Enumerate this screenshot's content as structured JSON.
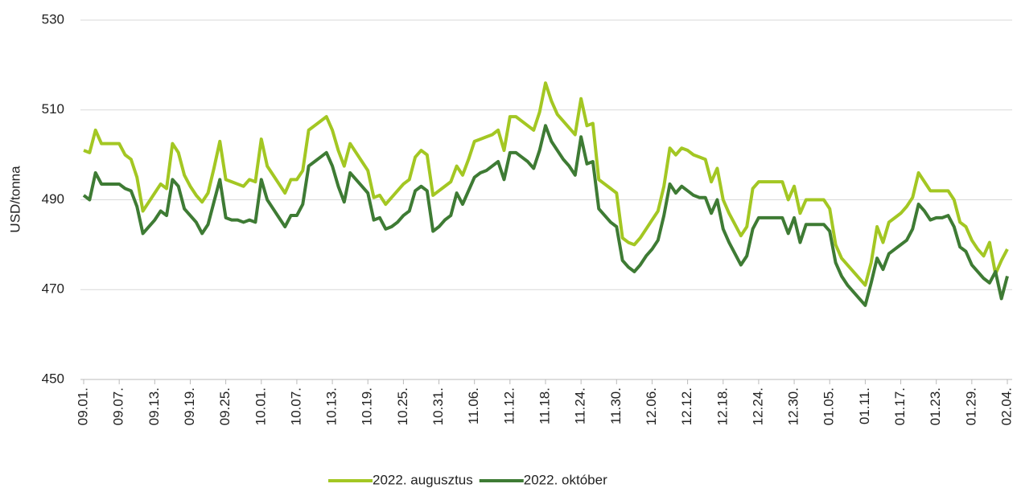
{
  "chart_data": {
    "type": "line",
    "y_label": "USD/tonna",
    "categories": [
      "09.01.",
      null,
      null,
      null,
      null,
      null,
      "09.07.",
      null,
      null,
      null,
      null,
      null,
      "09.13.",
      null,
      null,
      null,
      null,
      null,
      "09.19.",
      null,
      null,
      null,
      null,
      null,
      "09.25.",
      null,
      null,
      null,
      null,
      null,
      "10.01.",
      null,
      null,
      null,
      null,
      null,
      "10.07.",
      null,
      null,
      null,
      null,
      null,
      "10.13.",
      null,
      null,
      null,
      null,
      null,
      "10.19.",
      null,
      null,
      null,
      null,
      null,
      "10.25.",
      null,
      null,
      null,
      null,
      null,
      "10.31.",
      null,
      null,
      null,
      null,
      null,
      "11.06.",
      null,
      null,
      null,
      null,
      null,
      "11.12.",
      null,
      null,
      null,
      null,
      null,
      "11.18.",
      null,
      null,
      null,
      null,
      null,
      "11.24.",
      null,
      null,
      null,
      null,
      null,
      "11.30.",
      null,
      null,
      null,
      null,
      null,
      "12.06.",
      null,
      null,
      null,
      null,
      null,
      "12.12.",
      null,
      null,
      null,
      null,
      null,
      "12.18.",
      null,
      null,
      null,
      null,
      null,
      "12.24.",
      null,
      null,
      null,
      null,
      null,
      "12.30.",
      null,
      null,
      null,
      null,
      null,
      "01.05.",
      null,
      null,
      null,
      null,
      null,
      "01.11.",
      null,
      null,
      null,
      null,
      null,
      "01.17.",
      null,
      null,
      null,
      null,
      null,
      "01.23.",
      null,
      null,
      null,
      null,
      null,
      "01.29.",
      null,
      null,
      null,
      null,
      null,
      "02.04."
    ],
    "series": [
      {
        "name": "2022. augusztus",
        "color": "#a3c723",
        "values": [
          501,
          500.5,
          505.5,
          502.5,
          502.5,
          502.5,
          502.5,
          500,
          499,
          495,
          487.5,
          489.5,
          491.5,
          493.5,
          492.5,
          502.5,
          500.5,
          495.5,
          493,
          491,
          489.5,
          491.5,
          497,
          503,
          494.5,
          494,
          493.5,
          493,
          494.5,
          494,
          503.5,
          497.5,
          495.5,
          493.5,
          491.5,
          494.5,
          494.5,
          496.5,
          505.5,
          506.5,
          507.5,
          508.5,
          505.5,
          501,
          497.5,
          502.5,
          500.5,
          498.5,
          496.5,
          490.5,
          491,
          489,
          490.5,
          492,
          493.5,
          494.5,
          499.5,
          501,
          500,
          491,
          492,
          493,
          494,
          497.5,
          495.5,
          499,
          503,
          503.5,
          504,
          504.5,
          505.5,
          501,
          508.5,
          508.5,
          507.5,
          506.5,
          505.5,
          509.5,
          516,
          512,
          509,
          507.5,
          506,
          504.5,
          512.5,
          506.5,
          507,
          494.5,
          493.5,
          492.5,
          491.5,
          481.5,
          480.5,
          480,
          481.5,
          483.5,
          485.5,
          487.5,
          493,
          501.5,
          500,
          501.5,
          501,
          500,
          499.5,
          499,
          494,
          497,
          490,
          487,
          484.5,
          482,
          484,
          492.5,
          494,
          494,
          494,
          494,
          494,
          490,
          493,
          487,
          490,
          490,
          490,
          490,
          488,
          480,
          477,
          475.5,
          474,
          472.5,
          471,
          476,
          484,
          480.5,
          485,
          486,
          487,
          488.5,
          490.5,
          496,
          494,
          492,
          492,
          492,
          492,
          490,
          485,
          484,
          481,
          479,
          477.5,
          480.5,
          473.5,
          476.5,
          479
        ]
      },
      {
        "name": "2022. október",
        "color": "#3e7b34",
        "values": [
          491,
          490,
          496,
          493.5,
          493.5,
          493.5,
          493.5,
          492.5,
          492,
          488.5,
          482.5,
          484,
          485.5,
          487.5,
          486.5,
          494.5,
          493,
          488,
          486.5,
          485,
          482.5,
          484.5,
          489.5,
          494.5,
          486,
          485.5,
          485.5,
          485,
          485.5,
          485,
          494.5,
          490,
          488,
          486,
          484,
          486.5,
          486.5,
          489,
          497.5,
          498.5,
          499.5,
          500.5,
          497.5,
          493,
          489.5,
          496,
          494.5,
          493,
          491.5,
          485.5,
          486,
          483.5,
          484,
          485,
          486.5,
          487.5,
          492,
          493,
          492,
          483,
          484,
          485.5,
          486.5,
          491.5,
          489,
          492,
          495,
          496,
          496.5,
          497.5,
          498.5,
          494.5,
          500.5,
          500.5,
          499.5,
          498.5,
          497,
          501,
          506.5,
          503,
          501,
          499,
          497.5,
          495.5,
          504,
          498,
          498.5,
          488,
          486.5,
          485,
          484,
          476.5,
          475,
          474,
          475.5,
          477.5,
          479,
          481,
          486.5,
          493.5,
          491.5,
          493,
          492,
          491,
          490.5,
          490.5,
          487,
          490,
          483.5,
          480.5,
          478,
          475.5,
          477.5,
          483.5,
          486,
          486,
          486,
          486,
          486,
          482.5,
          486,
          480.5,
          484.5,
          484.5,
          484.5,
          484.5,
          483,
          476,
          473,
          471,
          469.5,
          468,
          466.5,
          471.5,
          477,
          474.5,
          478,
          479,
          480,
          481,
          483.5,
          489,
          487.5,
          485.5,
          486,
          486,
          486.5,
          484,
          479.5,
          478.5,
          475.5,
          474,
          472.5,
          471.5,
          474,
          468,
          473
        ]
      }
    ],
    "ylim": [
      450,
      530
    ],
    "yticks": [
      450,
      470,
      490,
      510,
      530
    ],
    "grid": true,
    "legend": "bottom"
  }
}
